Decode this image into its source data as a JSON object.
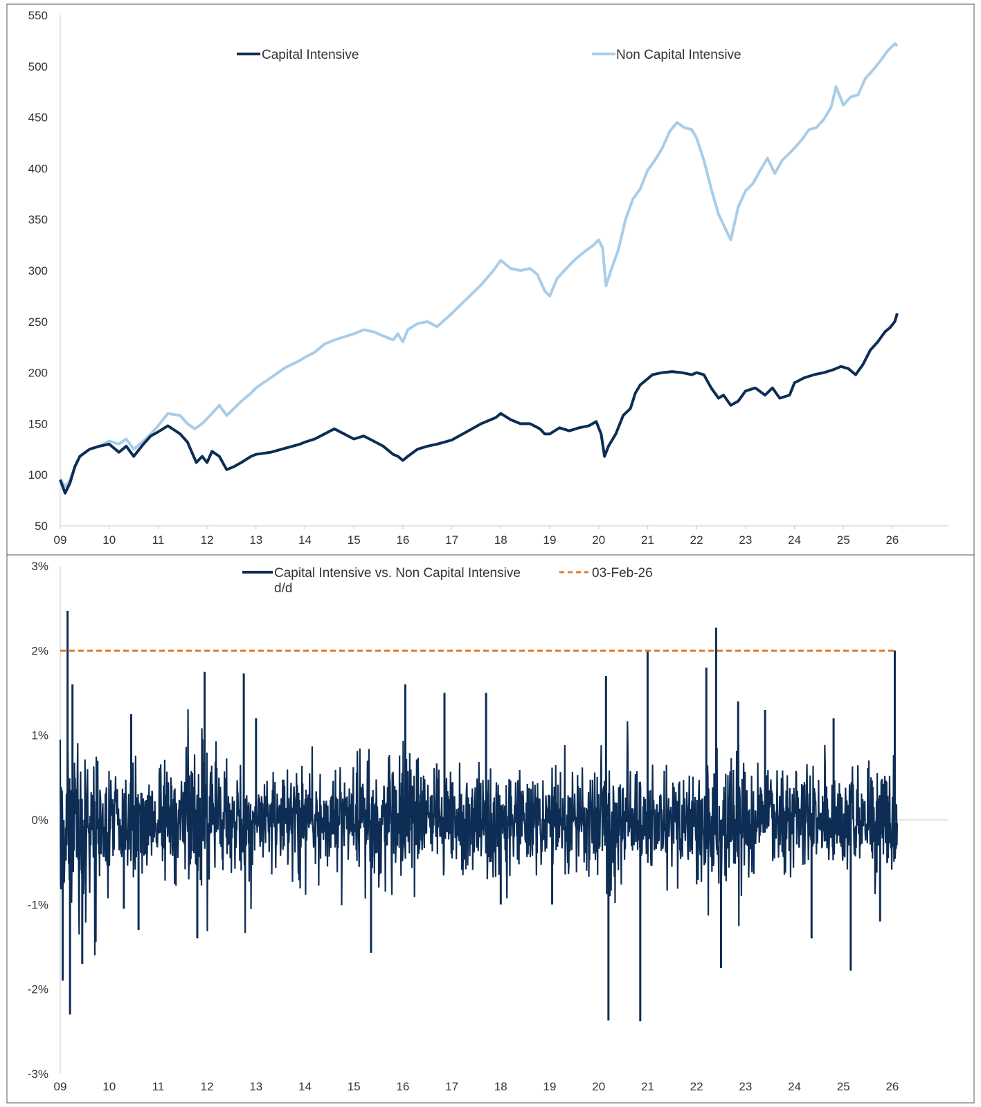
{
  "colors": {
    "capital": "#0d2d55",
    "non_capital": "#a9cde8",
    "threshold": "#e07b2a",
    "axis": "#c8c8c8",
    "border": "#555555"
  },
  "chart_data": [
    {
      "type": "line",
      "x_tick_labels": [
        "09",
        "10",
        "11",
        "12",
        "13",
        "14",
        "15",
        "16",
        "17",
        "18",
        "19",
        "20",
        "21",
        "22",
        "23",
        "24",
        "25",
        "26"
      ],
      "ylim": [
        50,
        550
      ],
      "y_ticks": [
        50,
        100,
        150,
        200,
        250,
        300,
        350,
        400,
        450,
        500,
        550
      ],
      "y_tick_labels": [
        "50",
        "100",
        "150",
        "200",
        "250",
        "300",
        "350",
        "400",
        "450",
        "500",
        "550"
      ],
      "legend_position": "top",
      "series": [
        {
          "name": "Capital Intensive",
          "color": "#0d2d55",
          "x": [
            2009.0,
            2009.1,
            2009.2,
            2009.3,
            2009.4,
            2009.6,
            2009.8,
            2010.0,
            2010.2,
            2010.35,
            2010.5,
            2010.7,
            2010.85,
            2011.0,
            2011.2,
            2011.45,
            2011.6,
            2011.78,
            2011.9,
            2012.0,
            2012.1,
            2012.25,
            2012.4,
            2012.55,
            2012.7,
            2012.9,
            2013.0,
            2013.3,
            2013.6,
            2013.9,
            2014.0,
            2014.2,
            2014.4,
            2014.6,
            2014.8,
            2015.0,
            2015.2,
            2015.4,
            2015.6,
            2015.8,
            2015.9,
            2016.0,
            2016.1,
            2016.3,
            2016.5,
            2016.7,
            2017.0,
            2017.3,
            2017.6,
            2017.9,
            2018.0,
            2018.2,
            2018.4,
            2018.6,
            2018.8,
            2018.9,
            2019.0,
            2019.2,
            2019.4,
            2019.6,
            2019.8,
            2019.95,
            2020.05,
            2020.12,
            2020.2,
            2020.35,
            2020.5,
            2020.65,
            2020.75,
            2020.85,
            2020.95,
            2021.1,
            2021.3,
            2021.5,
            2021.7,
            2021.9,
            2022.0,
            2022.15,
            2022.3,
            2022.45,
            2022.55,
            2022.7,
            2022.85,
            2023.0,
            2023.2,
            2023.4,
            2023.55,
            2023.7,
            2023.9,
            2024.0,
            2024.2,
            2024.4,
            2024.6,
            2024.8,
            2024.95,
            2025.1,
            2025.25,
            2025.4,
            2025.55,
            2025.7,
            2025.85,
            2025.95,
            2026.05,
            2026.1
          ],
          "values": [
            95,
            82,
            92,
            108,
            118,
            125,
            128,
            130,
            122,
            128,
            118,
            130,
            138,
            142,
            148,
            140,
            132,
            112,
            118,
            112,
            123,
            118,
            105,
            108,
            112,
            118,
            120,
            122,
            126,
            130,
            132,
            135,
            140,
            145,
            140,
            135,
            138,
            133,
            128,
            120,
            118,
            114,
            118,
            125,
            128,
            130,
            134,
            142,
            150,
            156,
            160,
            154,
            150,
            150,
            145,
            140,
            140,
            146,
            143,
            146,
            148,
            152,
            140,
            118,
            128,
            140,
            158,
            165,
            180,
            188,
            192,
            198,
            200,
            201,
            200,
            198,
            200,
            198,
            185,
            175,
            178,
            168,
            172,
            182,
            185,
            178,
            185,
            175,
            178,
            190,
            195,
            198,
            200,
            203,
            206,
            204,
            198,
            208,
            222,
            230,
            240,
            244,
            250,
            258
          ]
        },
        {
          "name": "Non Capital Intensive",
          "color": "#a9cde8",
          "x": [
            2009.0,
            2009.1,
            2009.2,
            2009.3,
            2009.4,
            2009.6,
            2009.8,
            2010.0,
            2010.2,
            2010.35,
            2010.5,
            2010.7,
            2010.85,
            2011.0,
            2011.2,
            2011.45,
            2011.6,
            2011.75,
            2011.9,
            2012.0,
            2012.1,
            2012.25,
            2012.4,
            2012.55,
            2012.7,
            2012.9,
            2013.0,
            2013.3,
            2013.6,
            2013.9,
            2014.0,
            2014.2,
            2014.4,
            2014.6,
            2014.8,
            2015.0,
            2015.2,
            2015.4,
            2015.6,
            2015.8,
            2015.9,
            2016.0,
            2016.1,
            2016.3,
            2016.5,
            2016.7,
            2017.0,
            2017.3,
            2017.6,
            2017.85,
            2018.0,
            2018.2,
            2018.4,
            2018.6,
            2018.75,
            2018.9,
            2019.0,
            2019.15,
            2019.3,
            2019.5,
            2019.7,
            2019.9,
            2020.0,
            2020.08,
            2020.15,
            2020.25,
            2020.4,
            2020.55,
            2020.7,
            2020.85,
            2021.0,
            2021.15,
            2021.3,
            2021.45,
            2021.6,
            2021.75,
            2021.9,
            2022.0,
            2022.15,
            2022.3,
            2022.45,
            2022.55,
            2022.7,
            2022.85,
            2023.0,
            2023.15,
            2023.3,
            2023.45,
            2023.6,
            2023.75,
            2023.9,
            2024.0,
            2024.15,
            2024.3,
            2024.45,
            2024.6,
            2024.75,
            2024.85,
            2025.0,
            2025.15,
            2025.3,
            2025.45,
            2025.6,
            2025.75,
            2025.9,
            2026.05,
            2026.1
          ],
          "values": [
            96,
            88,
            95,
            108,
            118,
            125,
            128,
            133,
            130,
            135,
            125,
            133,
            140,
            148,
            160,
            158,
            150,
            145,
            150,
            155,
            160,
            168,
            158,
            165,
            172,
            180,
            185,
            195,
            205,
            212,
            215,
            220,
            228,
            232,
            235,
            238,
            242,
            240,
            236,
            232,
            238,
            230,
            242,
            248,
            250,
            245,
            258,
            272,
            286,
            300,
            310,
            302,
            300,
            302,
            296,
            280,
            275,
            292,
            300,
            310,
            318,
            325,
            330,
            322,
            285,
            300,
            320,
            350,
            370,
            380,
            398,
            408,
            420,
            436,
            445,
            440,
            438,
            430,
            408,
            380,
            355,
            345,
            330,
            362,
            378,
            385,
            398,
            410,
            395,
            408,
            415,
            420,
            428,
            438,
            440,
            448,
            460,
            480,
            462,
            470,
            472,
            488,
            496,
            505,
            515,
            522,
            520
          ]
        }
      ]
    },
    {
      "type": "line",
      "x_tick_labels": [
        "09",
        "10",
        "11",
        "12",
        "13",
        "14",
        "15",
        "16",
        "17",
        "18",
        "19",
        "20",
        "21",
        "22",
        "23",
        "24",
        "25",
        "26"
      ],
      "ylim": [
        -3,
        3
      ],
      "y_ticks": [
        -3,
        -2,
        -1,
        0,
        1,
        2,
        3
      ],
      "y_tick_labels": [
        "-3%",
        "-2%",
        "-1%",
        "0%",
        "1%",
        "2%",
        "3%"
      ],
      "legend_position": "top",
      "series": [
        {
          "name": "Capital Intensive vs. Non Capital Intensive d/d",
          "color": "#0d2d55"
        },
        {
          "name": "03-Feb-26",
          "color": "#e07b2a",
          "style": "dashed",
          "x": [
            2009.0,
            2026.1
          ],
          "values": [
            2.0,
            2.0
          ]
        }
      ],
      "spikes": [
        {
          "x": 2009.05,
          "value": -1.9
        },
        {
          "x": 2009.15,
          "value": 2.47
        },
        {
          "x": 2009.2,
          "value": -2.3
        },
        {
          "x": 2009.25,
          "value": 1.6
        },
        {
          "x": 2009.45,
          "value": -1.7
        },
        {
          "x": 2010.3,
          "value": -1.05
        },
        {
          "x": 2010.45,
          "value": 1.25
        },
        {
          "x": 2010.6,
          "value": -1.3
        },
        {
          "x": 2011.8,
          "value": -1.4
        },
        {
          "x": 2011.95,
          "value": 1.75
        },
        {
          "x": 2012.75,
          "value": 1.73
        },
        {
          "x": 2013.0,
          "value": 1.2
        },
        {
          "x": 2015.35,
          "value": -1.57
        },
        {
          "x": 2016.05,
          "value": 1.6
        },
        {
          "x": 2016.85,
          "value": 1.5
        },
        {
          "x": 2017.7,
          "value": 1.5
        },
        {
          "x": 2018.0,
          "value": -1.0
        },
        {
          "x": 2019.05,
          "value": -1.0
        },
        {
          "x": 2020.15,
          "value": 1.7
        },
        {
          "x": 2020.2,
          "value": -2.37
        },
        {
          "x": 2020.85,
          "value": -2.38
        },
        {
          "x": 2021.0,
          "value": 2.0
        },
        {
          "x": 2022.2,
          "value": 1.8
        },
        {
          "x": 2022.4,
          "value": 2.27
        },
        {
          "x": 2022.5,
          "value": -1.75
        },
        {
          "x": 2022.85,
          "value": 1.4
        },
        {
          "x": 2023.4,
          "value": 1.3
        },
        {
          "x": 2024.35,
          "value": -1.4
        },
        {
          "x": 2024.8,
          "value": 1.2
        },
        {
          "x": 2025.15,
          "value": -1.78
        },
        {
          "x": 2025.75,
          "value": -1.2
        },
        {
          "x": 2026.05,
          "value": 2.0
        }
      ]
    }
  ]
}
